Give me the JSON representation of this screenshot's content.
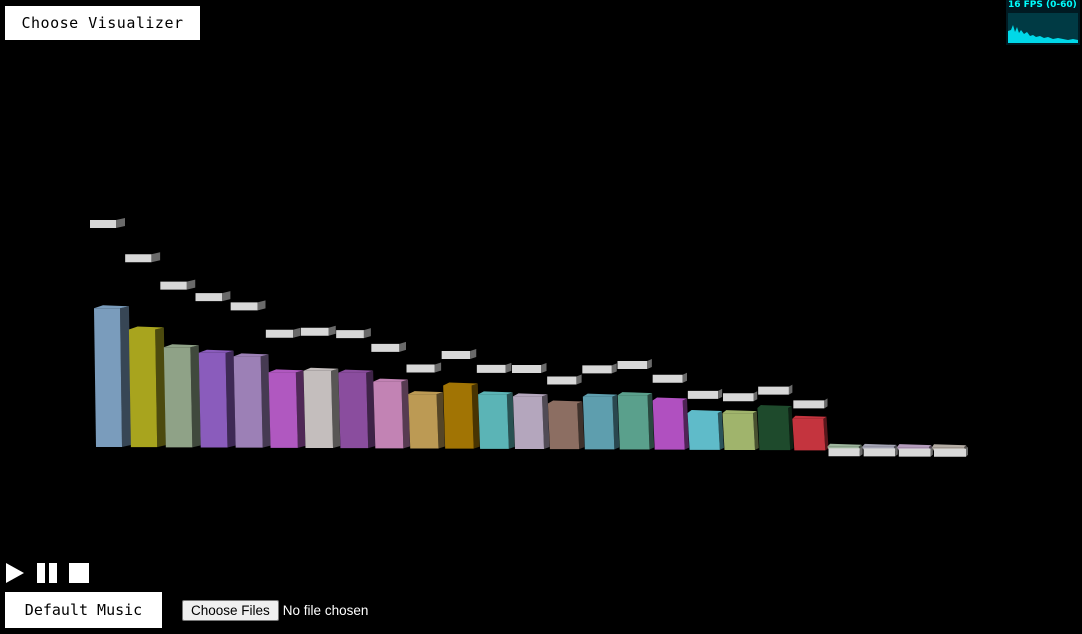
{
  "header": {
    "choose_visualizer_label": "Choose Visualizer"
  },
  "fps_meter": {
    "label": "16 FPS (0-60)",
    "fps": 16,
    "range": [
      0,
      60
    ],
    "color": "#00ffff"
  },
  "visualizer": {
    "kind": "3d-frequency-bars",
    "bar_levels": [
      0.79,
      0.67,
      0.57,
      0.54,
      0.52,
      0.43,
      0.44,
      0.43,
      0.38,
      0.31,
      0.36,
      0.31,
      0.3,
      0.26,
      0.3,
      0.31,
      0.28,
      0.21,
      0.21,
      0.24,
      0.18,
      0.01,
      0.01,
      0.01,
      0.01
    ],
    "peak_levels": [
      1.0,
      0.85,
      0.73,
      0.68,
      0.64,
      0.52,
      0.53,
      0.52,
      0.46,
      0.37,
      0.43,
      0.37,
      0.37,
      0.32,
      0.37,
      0.39,
      0.33,
      0.26,
      0.25,
      0.28,
      0.22,
      0.01,
      0.01,
      0.01,
      0.01
    ],
    "bar_colors": [
      "#7a9cbc",
      "#a8a41e",
      "#8fa287",
      "#8a5cbc",
      "#9c80b6",
      "#b058c0",
      "#c4bebd",
      "#8a4d9e",
      "#c283b4",
      "#bc9a54",
      "#a17404",
      "#5bb4b6",
      "#b4a6bd",
      "#8c6e62",
      "#5e9eae",
      "#5aa08c",
      "#b050c0",
      "#5fbbc9",
      "#a0b46c",
      "#1e4a2c",
      "#c4343e",
      "#9cb49c",
      "#a4a4b4",
      "#b49cbc",
      "#b4aca4"
    ],
    "peak_color": "#d8d8d8"
  },
  "transport": {
    "play_icon": "play-icon",
    "pause_icon": "pause-icon",
    "stop_icon": "stop-icon"
  },
  "footer": {
    "default_music_label": "Default Music",
    "file_button_label": "Choose Files",
    "file_status": "No file chosen"
  }
}
